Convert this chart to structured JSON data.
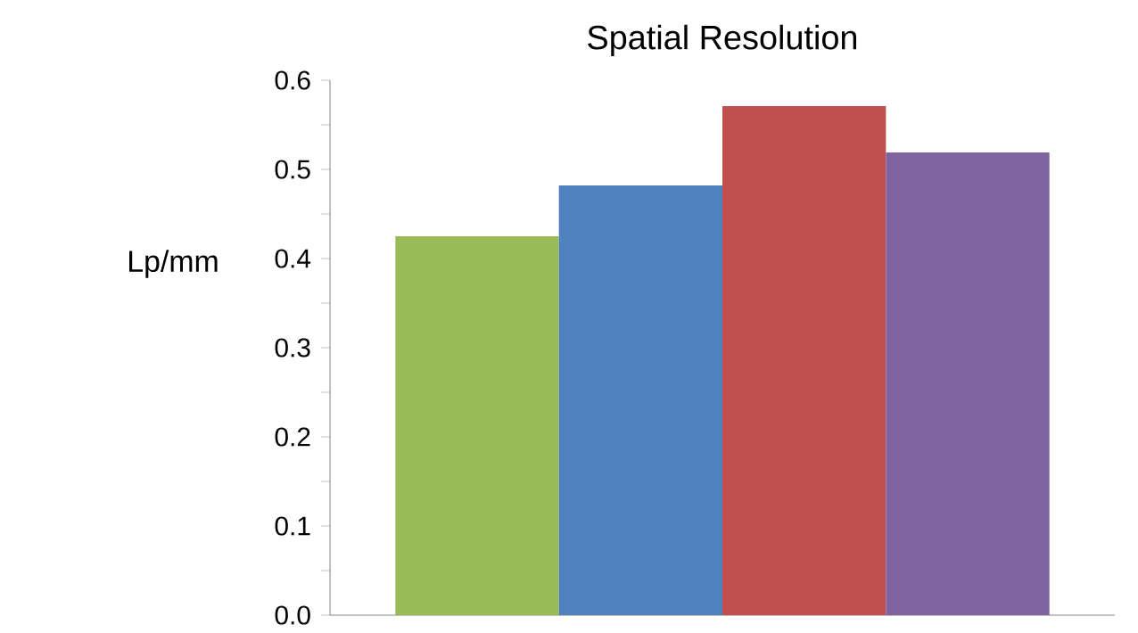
{
  "chart_data": {
    "type": "bar",
    "title": "Spatial Resolution",
    "ylabel": "Lp/mm",
    "categories": [
      null,
      null,
      null,
      null
    ],
    "values": [
      0.425,
      0.482,
      0.571,
      0.519
    ],
    "colors": [
      "#9bbb59",
      "#4f81bd",
      "#c0504d",
      "#8064a2"
    ],
    "ylim": [
      0,
      0.6
    ],
    "yticks": [
      {
        "value": 0,
        "label": "0.0"
      },
      {
        "value": 0.05,
        "label": null
      },
      {
        "value": 0.1,
        "label": "0.1"
      },
      {
        "value": 0.15,
        "label": null
      },
      {
        "value": 0.2,
        "label": "0.2"
      },
      {
        "value": 0.25,
        "label": null
      },
      {
        "value": 0.3,
        "label": "0.3"
      },
      {
        "value": 0.35,
        "label": null
      },
      {
        "value": 0.4,
        "label": "0.4"
      },
      {
        "value": 0.45,
        "label": null
      },
      {
        "value": 0.5,
        "label": "0.5"
      },
      {
        "value": 0.55,
        "label": null
      },
      {
        "value": 0.6,
        "label": "0.6"
      }
    ],
    "grid": false
  }
}
